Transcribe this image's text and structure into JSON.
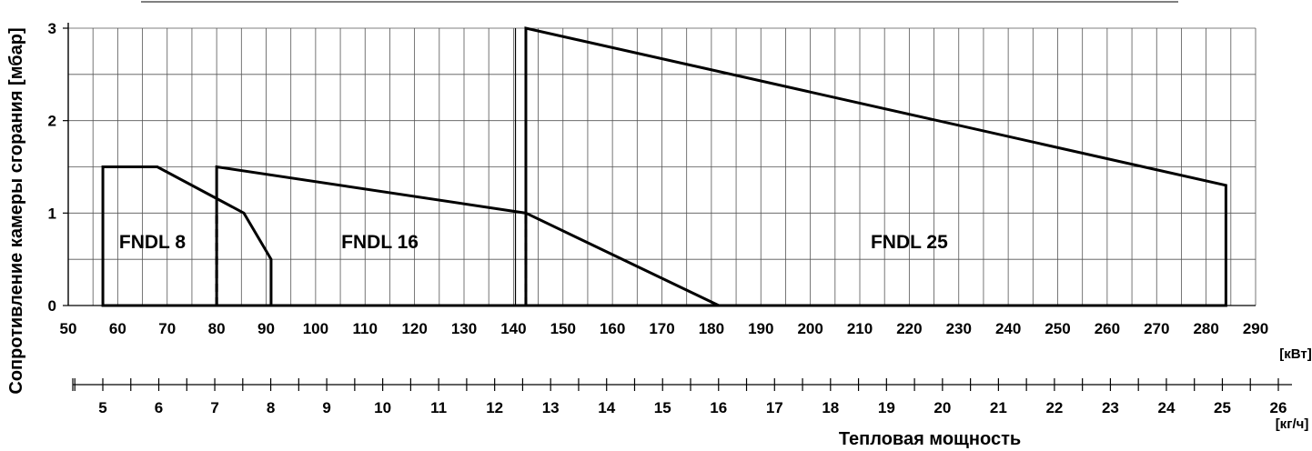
{
  "chart_data": {
    "type": "area",
    "ylabel": "Сопротивление камеры сгорания [мбар]",
    "xlabel": "Тепловая мощность",
    "x_unit": "[кВт]",
    "x2_unit": "[кг/ч]",
    "xlim": [
      50,
      290
    ],
    "ylim": [
      0,
      3
    ],
    "x_ticks": [
      50,
      60,
      70,
      80,
      90,
      100,
      110,
      120,
      130,
      140,
      150,
      160,
      170,
      180,
      190,
      200,
      210,
      220,
      230,
      240,
      250,
      260,
      270,
      280,
      290
    ],
    "y_ticks": [
      0,
      1,
      2,
      3
    ],
    "x2_ticks": [
      5,
      6,
      7,
      8,
      9,
      10,
      11,
      12,
      13,
      14,
      15,
      16,
      17,
      18,
      19,
      20,
      21,
      22,
      23,
      24,
      25,
      26
    ],
    "grid": true,
    "series": [
      {
        "name": "FNDL 8",
        "polygon": [
          [
            57,
            0
          ],
          [
            57,
            1.5
          ],
          [
            68,
            1.5
          ],
          [
            85.5,
            1.0
          ],
          [
            91,
            0.5
          ],
          [
            91,
            0
          ]
        ],
        "label_pos": [
          67,
          0.7
        ]
      },
      {
        "name": "FNDL 16",
        "polygon": [
          [
            80,
            0
          ],
          [
            80,
            1.5
          ],
          [
            142.5,
            1.0
          ],
          [
            181.5,
            0
          ]
        ],
        "label_pos": [
          113,
          0.7
        ]
      },
      {
        "name": "FNDL 25",
        "polygon": [
          [
            142.5,
            0
          ],
          [
            142.5,
            3.0
          ],
          [
            284,
            1.3
          ],
          [
            284,
            0
          ]
        ],
        "label_pos": [
          220,
          0.7
        ]
      }
    ],
    "dashed_lines": [
      {
        "x": 80,
        "y0": 0,
        "y1": 1.0
      },
      {
        "x": 142.5,
        "y0": 0,
        "y1": 1.0
      }
    ]
  }
}
